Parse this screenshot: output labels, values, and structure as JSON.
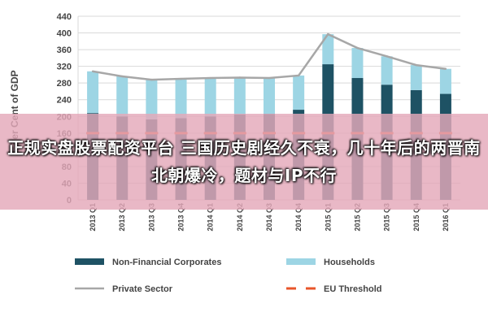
{
  "chart_data": {
    "type": "bar",
    "stacked": true,
    "categories": [
      "2013 Q1",
      "2013 Q2",
      "2013 Q3",
      "2013 Q4",
      "2014 Q1",
      "2014 Q2",
      "2014 Q3",
      "2014 Q4",
      "2015 Q1",
      "2015 Q2",
      "2015 Q3",
      "2015 Q4",
      "2016 Q1"
    ],
    "series": [
      {
        "name": "Non-Financial Corporates",
        "kind": "bar",
        "color": "#1e5264",
        "values": [
          208,
          200,
          193,
          196,
          200,
          205,
          206,
          216,
          325,
          292,
          276,
          263,
          254
        ]
      },
      {
        "name": "Households",
        "kind": "bar",
        "color": "#9dd5e4",
        "values": [
          100,
          96,
          95,
          94,
          92,
          88,
          86,
          82,
          72,
          72,
          68,
          60,
          60
        ]
      },
      {
        "name": "Private Sector",
        "kind": "line",
        "color": "#a7a7a7",
        "values": [
          308,
          296,
          288,
          290,
          292,
          293,
          292,
          298,
          397,
          364,
          344,
          323,
          314
        ]
      },
      {
        "name": "EU Threshold",
        "kind": "dash",
        "color": "#e8552a",
        "values": [
          160,
          160,
          160,
          160,
          160,
          160,
          160,
          160,
          160,
          160,
          160,
          160,
          160
        ]
      }
    ],
    "ylabel": "Per Cent of GDP",
    "ylim": [
      0,
      440
    ],
    "yticks": [
      0,
      40,
      80,
      120,
      160,
      200,
      240,
      280,
      320,
      360,
      400,
      440
    ],
    "grid": true,
    "legend": "bottom"
  },
  "overlay": {
    "text": "正规实盘股票配资平台 三国历史剧经久不衰，几十年后的两晋南北朝爆冷，题材与IP不行"
  }
}
